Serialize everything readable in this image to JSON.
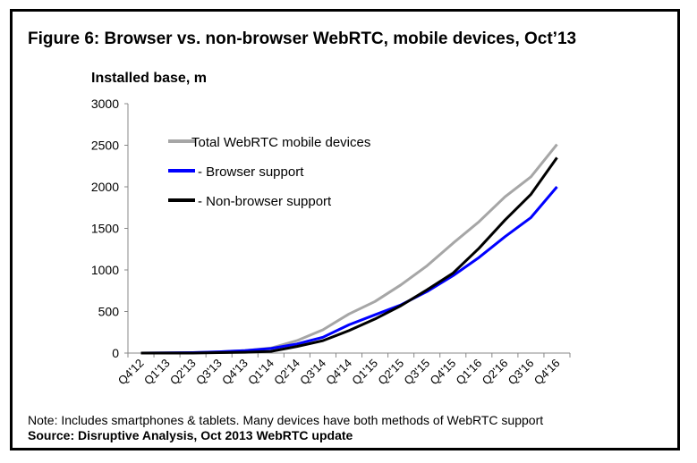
{
  "title": "Figure 6: Browser vs. non-browser WebRTC, mobile devices, Oct’13",
  "note": "Note: Includes smartphones & tablets. Many devices have both methods of WebRTC support",
  "source": "Source: Disruptive Analysis, Oct 2013 WebRTC update",
  "chart_data": {
    "type": "line",
    "title": "Figure 6: Browser vs. non-browser WebRTC, mobile devices, Oct’13",
    "xlabel": "",
    "ylabel": "Installed base, m",
    "ylim": [
      0,
      3000
    ],
    "yticks": [
      0,
      500,
      1000,
      1500,
      2000,
      2500,
      3000
    ],
    "grid": false,
    "legend_position": "top-left",
    "categories": [
      "Q4'12",
      "Q1'13",
      "Q2'13",
      "Q3'13",
      "Q4'13",
      "Q1'14",
      "Q2'14",
      "Q3'14",
      "Q4'14",
      "Q1'15",
      "Q2'15",
      "Q3'15",
      "Q4'15",
      "Q1'16",
      "Q2'16",
      "Q3'16",
      "Q4'16"
    ],
    "series": [
      {
        "name": "Total WebRTC  mobile devices",
        "color": "#a6a6a6",
        "values": [
          0,
          2,
          5,
          15,
          30,
          60,
          150,
          280,
          470,
          620,
          820,
          1050,
          1320,
          1580,
          1880,
          2120,
          2510
        ]
      },
      {
        "name": "- Browser support",
        "color": "#0000ff",
        "values": [
          0,
          2,
          5,
          15,
          30,
          55,
          110,
          190,
          340,
          460,
          580,
          740,
          930,
          1150,
          1400,
          1630,
          2000
        ]
      },
      {
        "name": "- Non-browser support",
        "color": "#000000",
        "values": [
          0,
          0,
          0,
          5,
          10,
          20,
          80,
          150,
          270,
          410,
          570,
          760,
          960,
          1260,
          1600,
          1910,
          2350
        ]
      }
    ]
  }
}
